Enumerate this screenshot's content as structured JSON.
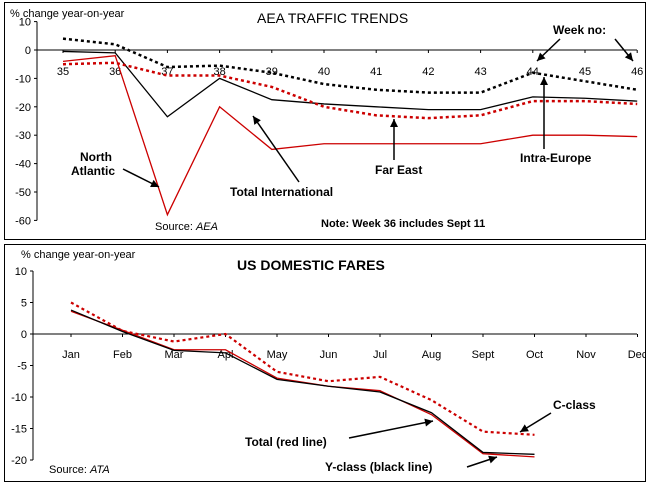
{
  "chart_data": [
    {
      "type": "line",
      "title": "AEA TRAFFIC TRENDS",
      "ylabel": "% change year-on-year",
      "xlabel": "Week no:",
      "ylim": [
        -60,
        10
      ],
      "yticks": [
        10,
        0,
        -10,
        -20,
        -30,
        -40,
        -50,
        -60
      ],
      "x": [
        35,
        36,
        37,
        38,
        39,
        40,
        41,
        42,
        43,
        44,
        45,
        46
      ],
      "xtick_labels": [
        "35",
        "36",
        "37",
        "38",
        "39",
        "40",
        "41",
        "42",
        "43",
        "44",
        "45",
        "46"
      ],
      "series": [
        {
          "name": "North Atlantic",
          "color": "#cc0000",
          "style": "solid",
          "values": [
            -4,
            -2,
            -58,
            -20,
            -35,
            -33,
            -33,
            -33,
            -33,
            -30,
            -30,
            -30.5
          ]
        },
        {
          "name": "Total International",
          "color": "#000000",
          "style": "solid",
          "values": [
            -0.5,
            -1,
            -23.5,
            -10,
            -17.5,
            -19,
            -20,
            -21,
            -21,
            -16.5,
            -17,
            -18
          ]
        },
        {
          "name": "Far East",
          "color": "#cc0000",
          "style": "dotted",
          "values": [
            -5,
            -4.5,
            -9,
            -9,
            -13,
            -20,
            -23,
            -24,
            -23,
            -18,
            -18,
            -19
          ]
        },
        {
          "name": "Intra-Europe",
          "color": "#000000",
          "style": "dotted",
          "values": [
            4,
            2,
            -6,
            -5.5,
            -8,
            -12,
            -14,
            -15,
            -15,
            -8,
            -11,
            -14
          ]
        }
      ],
      "annotations": [
        {
          "text": "North"
        },
        {
          "text": "Atlantic"
        },
        {
          "text": "Total International"
        },
        {
          "text": "Far East"
        },
        {
          "text": "Intra-Europe"
        },
        {
          "text": "Source: AEA"
        },
        {
          "text": "Note: Week 36 includes Sept 11"
        }
      ]
    },
    {
      "type": "line",
      "title": "US DOMESTIC FARES",
      "ylabel": "% change year-on-year",
      "ylim": [
        -20,
        10
      ],
      "yticks": [
        10,
        5,
        0,
        -5,
        -10,
        -15,
        -20
      ],
      "categories": [
        "Jan",
        "Feb",
        "Mar",
        "Apl",
        "May",
        "Jun",
        "Jul",
        "Aug",
        "Sept",
        "Oct",
        "Nov",
        "Dec"
      ],
      "series": [
        {
          "name": "C-class",
          "color": "#cc0000",
          "style": "dotted",
          "values": [
            5,
            0.5,
            -1.2,
            0,
            -6,
            -7.5,
            -6.8,
            -10.5,
            -15.5,
            -16,
            null,
            null
          ]
        },
        {
          "name": "Total",
          "color": "#cc0000",
          "style": "solid",
          "values": [
            3.6,
            0.6,
            -2.5,
            -2.5,
            -7,
            -8.3,
            -9,
            -12.8,
            -19,
            -19.5,
            null,
            null
          ]
        },
        {
          "name": "Y-class",
          "color": "#000000",
          "style": "solid",
          "values": [
            3.8,
            0.4,
            -2.6,
            -3,
            -7.2,
            -8.3,
            -9.2,
            -12.5,
            -18.8,
            -19.1,
            null,
            null
          ]
        }
      ],
      "annotations": [
        {
          "text": "C-class"
        },
        {
          "text": "Total (red line)"
        },
        {
          "text": "Y-class (black line)"
        },
        {
          "text": "Source:  ATA"
        }
      ]
    }
  ]
}
